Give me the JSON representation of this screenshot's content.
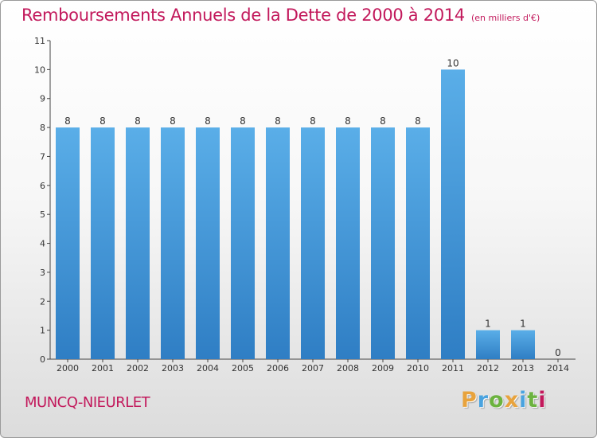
{
  "header": {
    "title": "Remboursements Annuels de la Dette de 2000 à 2014",
    "unit": "(en milliers d'€)"
  },
  "footer": {
    "commune": "MUNCQ-NIEURLET",
    "brand": [
      "P",
      "r",
      "o",
      "x",
      "i",
      "t",
      "i"
    ],
    "brand_colors": [
      "#e8a33d",
      "#4aa3df",
      "#6cb33f",
      "#e8a33d",
      "#4aa3df",
      "#6cb33f",
      "#c2185b"
    ]
  },
  "colors": {
    "bar_light": "#5aaee8",
    "bar_dark": "#2f7ec4",
    "axis": "#444444",
    "grid_tick": "#444444"
  },
  "chart_data": {
    "type": "bar",
    "title": "Remboursements Annuels de la Dette de 2000 à 2014",
    "categories": [
      "2000",
      "2001",
      "2002",
      "2003",
      "2004",
      "2005",
      "2006",
      "2007",
      "2008",
      "2009",
      "2010",
      "2011",
      "2012",
      "2013",
      "2014"
    ],
    "values": [
      8,
      8,
      8,
      8,
      8,
      8,
      8,
      8,
      8,
      8,
      8,
      10,
      1,
      1,
      0
    ],
    "labels": [
      "8",
      "8",
      "8",
      "8",
      "8",
      "8",
      "8",
      "8",
      "8",
      "8",
      "8",
      "10",
      "1",
      "1",
      "0"
    ],
    "yticks": [
      "0",
      "1",
      "2",
      "3",
      "4",
      "5",
      "6",
      "7",
      "8",
      "9",
      "10",
      "11"
    ],
    "ylim": [
      0,
      11
    ],
    "xlabel": "",
    "ylabel": "",
    "grid": false
  }
}
